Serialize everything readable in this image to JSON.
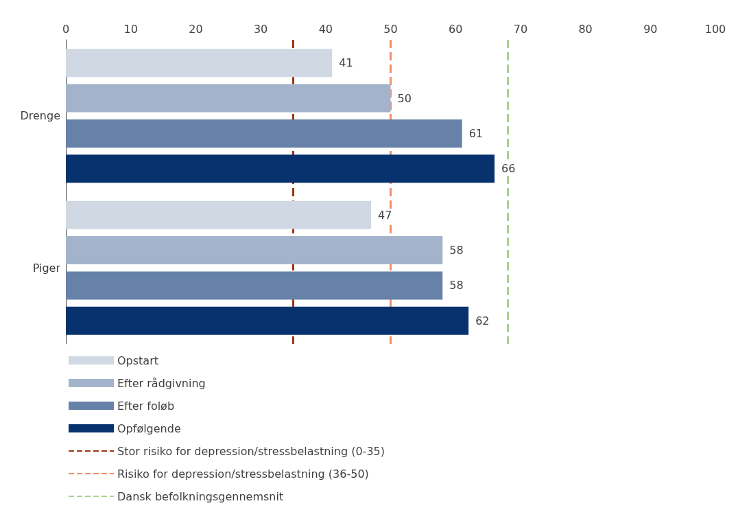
{
  "chart_data": {
    "type": "bar",
    "orientation": "horizontal",
    "categories": [
      "Drenge",
      "Piger"
    ],
    "series": [
      {
        "name": "Opstart",
        "color": "#d0d8e4",
        "values": [
          41,
          47
        ]
      },
      {
        "name": "Efter rådgivning",
        "color": "#a3b3cb",
        "values": [
          50,
          58
        ]
      },
      {
        "name": "Efter foløb",
        "color": "#6682a8",
        "values": [
          61,
          58
        ]
      },
      {
        "name": "Opfølgende",
        "color": "#08326e",
        "values": [
          66,
          62
        ]
      }
    ],
    "xlim": [
      0,
      100
    ],
    "xticks": [
      0,
      10,
      20,
      30,
      40,
      50,
      60,
      70,
      80,
      90,
      100
    ],
    "ref_lines": [
      {
        "axis": "x",
        "value": 35,
        "label": "Stor risiko for depression/stressbelastning (0-35)",
        "color": "#a0350f",
        "line_style": "dashed"
      },
      {
        "axis": "x",
        "value": 50,
        "label": "Risiko for depression/stressbelastning (36-50)",
        "color": "#f28e66",
        "line_style": "dashed"
      },
      {
        "axis": "x",
        "value": 68,
        "label": "Dansk befolkningsgennemsnit",
        "color": "#a9d18e",
        "line_style": "dashed"
      }
    ],
    "data_labels": true,
    "grid": false,
    "legend": "bottom left"
  }
}
